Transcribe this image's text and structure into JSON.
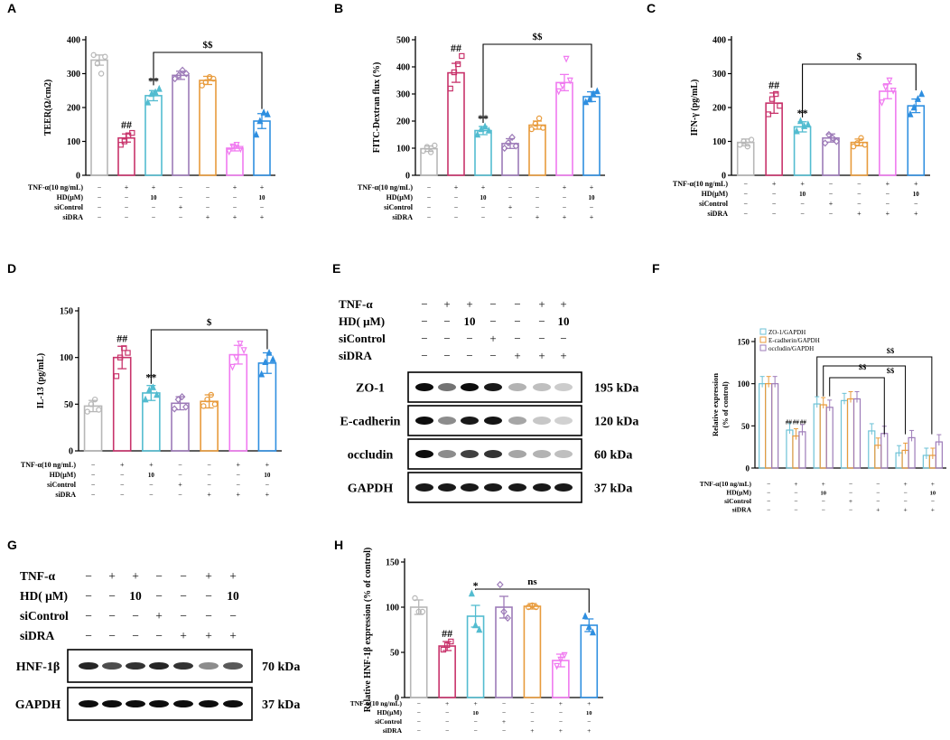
{
  "panel_letters": [
    "A",
    "B",
    "C",
    "D",
    "E",
    "F",
    "G",
    "H"
  ],
  "group_colors": [
    "#b7b7b7",
    "#c8336b",
    "#53bcd0",
    "#9d7bb8",
    "#e89b3c",
    "#f07af0",
    "#2f8fe0"
  ],
  "condition_rows": {
    "tnf": {
      "label": "TNF-α(10 ng/mL)",
      "marks": [
        "−",
        "+",
        "+",
        "−",
        "−",
        "+",
        "+"
      ]
    },
    "hd": {
      "label": "HD(μM)",
      "marks": [
        "−",
        "−",
        "10",
        "−",
        "−",
        "−",
        "10"
      ]
    },
    "sicontrol": {
      "label": "siControl",
      "marks": [
        "−",
        "−",
        "−",
        "+",
        "−",
        "−",
        "−"
      ]
    },
    "sidra": {
      "label": "siDRA",
      "marks": [
        "−",
        "−",
        "−",
        "−",
        "+",
        "+",
        "+"
      ]
    }
  },
  "chart_data": [
    {
      "id": "A",
      "type": "bar",
      "ylabel": "TEER(Ω/cm2)",
      "ylim": [
        0,
        400
      ],
      "yticks": [
        0,
        100,
        200,
        300,
        400
      ],
      "values": [
        340,
        110,
        235,
        295,
        280,
        80,
        160
      ],
      "errors": [
        15,
        12,
        15,
        12,
        12,
        8,
        22
      ],
      "points": [
        [
          355,
          330,
          300,
          350
        ],
        [
          90,
          100,
          118,
          125
        ],
        [
          215,
          240,
          245,
          255
        ],
        [
          285,
          295,
          310,
          300
        ],
        [
          265,
          275,
          290,
          285
        ],
        [
          70,
          85,
          90,
          78
        ],
        [
          120,
          160,
          185,
          180
        ]
      ],
      "annotations": {
        "above": {
          "1": "##",
          "2": "**"
        },
        "bracket": {
          "from": 2,
          "to": 6,
          "label": "$$"
        }
      }
    },
    {
      "id": "B",
      "type": "bar",
      "ylabel": "FITC-Dextran flux (%)",
      "ylim": [
        0,
        500
      ],
      "yticks": [
        0,
        100,
        200,
        300,
        400,
        500
      ],
      "values": [
        98,
        378,
        165,
        117,
        185,
        342,
        290
      ],
      "errors": [
        10,
        35,
        15,
        18,
        15,
        30,
        18
      ],
      "points": [
        [
          90,
          105,
          85,
          110
        ],
        [
          320,
          380,
          410,
          440
        ],
        [
          150,
          170,
          180,
          165
        ],
        [
          100,
          120,
          140,
          108
        ],
        [
          170,
          190,
          210,
          175
        ],
        [
          310,
          330,
          430,
          350
        ],
        [
          270,
          280,
          300,
          310
        ]
      ],
      "annotations": {
        "above": {
          "1": "##",
          "2": "**"
        },
        "bracket": {
          "from": 2,
          "to": 6,
          "label": "$$"
        }
      }
    },
    {
      "id": "C",
      "type": "bar",
      "ylabel": "IFN-γ (pg/mL)",
      "ylim": [
        0,
        400
      ],
      "yticks": [
        0,
        100,
        200,
        300,
        400
      ],
      "values": [
        97,
        213,
        143,
        110,
        97,
        248,
        205
      ],
      "errors": [
        10,
        30,
        15,
        12,
        10,
        22,
        20
      ],
      "points": [
        [
          90,
          100,
          85,
          105
        ],
        [
          180,
          225,
          240,
          205
        ],
        [
          130,
          160,
          145,
          150
        ],
        [
          95,
          120,
          110,
          100
        ],
        [
          85,
          95,
          110,
          90
        ],
        [
          215,
          260,
          280,
          250
        ],
        [
          180,
          200,
          225,
          240
        ]
      ],
      "annotations": {
        "above": {
          "1": "##",
          "2": "**"
        },
        "bracket": {
          "from": 2,
          "to": 6,
          "label": "$"
        }
      }
    },
    {
      "id": "D",
      "type": "bar",
      "ylabel": "IL-13 (pg/mL)",
      "ylim": [
        0,
        150
      ],
      "yticks": [
        0,
        50,
        100,
        150
      ],
      "values": [
        48,
        100,
        62,
        51,
        53,
        103,
        94
      ],
      "errors": [
        6,
        12,
        8,
        7,
        7,
        10,
        11
      ],
      "points": [
        [
          42,
          50,
          55,
          44
        ],
        [
          80,
          100,
          110,
          105
        ],
        [
          55,
          65,
          68,
          60
        ],
        [
          45,
          55,
          58,
          47
        ],
        [
          48,
          55,
          60,
          50
        ],
        [
          90,
          100,
          115,
          108
        ],
        [
          82,
          95,
          105,
          98
        ]
      ],
      "annotations": {
        "above": {
          "1": "##",
          "2": "**"
        },
        "bracket": {
          "from": 2,
          "to": 6,
          "label": "$"
        }
      }
    },
    {
      "id": "F",
      "type": "bar",
      "ylabel": "Relative expression (% of control)",
      "ylim": [
        0,
        150
      ],
      "yticks": [
        0,
        50,
        100,
        150
      ],
      "legend": [
        "ZO-1/GAPDH",
        "E-cadherin/GAPDH",
        "occludin/GAPDH"
      ],
      "legend_colors": [
        "#6dc2d6",
        "#e89b3c",
        "#9d7bb8"
      ],
      "series": [
        {
          "name": "ZO-1/GAPDH",
          "values": [
            100,
            45,
            76,
            80,
            44,
            18,
            15
          ]
        },
        {
          "name": "E-cadherin/GAPDH",
          "values": [
            100,
            38,
            75,
            82,
            27,
            21,
            15
          ]
        },
        {
          "name": "occludin/GAPDH",
          "values": [
            100,
            43,
            72,
            82,
            41,
            36,
            31
          ]
        }
      ],
      "annotations": {
        "above_group": {
          "1": "##"
        },
        "brackets": [
          {
            "label": "$$"
          },
          {
            "label": "$$"
          },
          {
            "label": "$$"
          }
        ]
      }
    },
    {
      "id": "H",
      "type": "bar",
      "ylabel": "Relative HNF-1β expression (% of control)",
      "ylim": [
        0,
        150
      ],
      "yticks": [
        0,
        50,
        100,
        150
      ],
      "values": [
        100,
        57,
        90,
        100,
        101,
        41,
        80
      ],
      "errors": [
        8,
        5,
        12,
        12,
        3,
        7,
        7
      ],
      "points": [
        [
          110,
          95,
          95
        ],
        [
          53,
          58,
          62
        ],
        [
          115,
          80,
          75
        ],
        [
          125,
          95,
          88
        ],
        [
          100,
          102,
          100
        ],
        [
          35,
          42,
          47
        ],
        [
          90,
          78,
          72
        ]
      ],
      "annotations": {
        "above": {
          "1": "##",
          "2": "*"
        },
        "bracket": {
          "from": 2,
          "to": 6,
          "label": "ns"
        }
      }
    }
  ],
  "blot_E": {
    "headers": {
      "tnf": {
        "label": "TNF-α",
        "marks": [
          "−",
          "+",
          "+",
          "−",
          "−",
          "+",
          "+"
        ]
      },
      "hd": {
        "label": "HD( μM)",
        "marks": [
          "−",
          "−",
          "10",
          "−",
          "−",
          "−",
          "10"
        ]
      },
      "sicontrol": {
        "label": "siControl",
        "marks": [
          "−",
          "−",
          "−",
          "+",
          "−",
          "−",
          "−"
        ]
      },
      "sidra": {
        "label": "siDRA",
        "marks": [
          "−",
          "−",
          "−",
          "−",
          "+",
          "+",
          "+"
        ]
      }
    },
    "rows": [
      {
        "protein": "ZO-1",
        "size": "195 kDa",
        "intensity": [
          0.95,
          0.55,
          0.95,
          0.9,
          0.3,
          0.25,
          0.2
        ]
      },
      {
        "protein": "E-cadherin",
        "size": "120 kDa",
        "intensity": [
          0.95,
          0.45,
          0.9,
          0.92,
          0.35,
          0.22,
          0.18
        ]
      },
      {
        "protein": "occludin",
        "size": "60 kDa",
        "intensity": [
          0.95,
          0.45,
          0.75,
          0.8,
          0.35,
          0.3,
          0.25
        ]
      },
      {
        "protein": "GAPDH",
        "size": "37 kDa",
        "intensity": [
          0.9,
          0.9,
          0.9,
          0.9,
          0.9,
          0.9,
          0.9
        ]
      }
    ]
  },
  "blot_G": {
    "headers": {
      "tnf": {
        "label": "TNF-α",
        "marks": [
          "−",
          "+",
          "+",
          "−",
          "−",
          "+",
          "+"
        ]
      },
      "hd": {
        "label": "HD( μM)",
        "marks": [
          "−",
          "−",
          "10",
          "−",
          "−",
          "−",
          "10"
        ]
      },
      "sicontrol": {
        "label": "siControl",
        "marks": [
          "−",
          "−",
          "−",
          "+",
          "−",
          "−",
          "−"
        ]
      },
      "sidra": {
        "label": "siDRA",
        "marks": [
          "−",
          "−",
          "−",
          "−",
          "+",
          "+",
          "+"
        ]
      }
    },
    "rows": [
      {
        "protein": "HNF-1β",
        "size": "70 kDa",
        "intensity": [
          0.85,
          0.7,
          0.8,
          0.85,
          0.8,
          0.45,
          0.65
        ]
      },
      {
        "protein": "GAPDH",
        "size": "37 kDa",
        "intensity": [
          0.95,
          0.95,
          0.95,
          0.95,
          0.95,
          0.95,
          0.95
        ]
      }
    ]
  }
}
